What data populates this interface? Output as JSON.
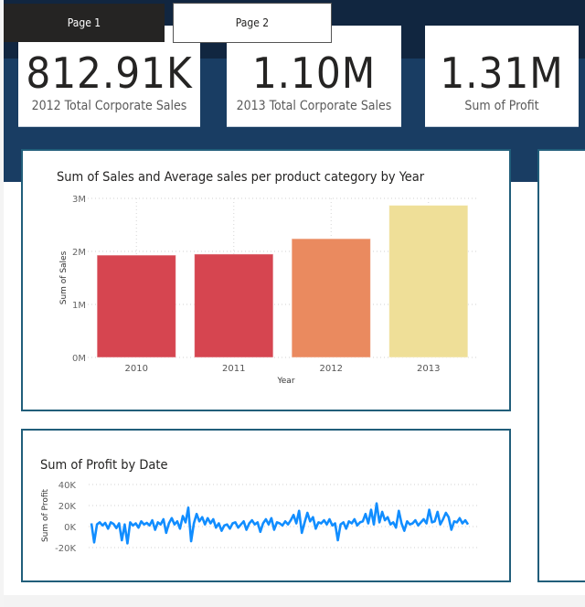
{
  "tabs": [
    {
      "label": "Page 1",
      "active": true
    },
    {
      "label": "Page 2",
      "active": false
    }
  ],
  "kpis": [
    {
      "value": "812.91K",
      "label": "2012 Total Corporate Sales"
    },
    {
      "value": "1.10M",
      "label": "2013 Total Corporate Sales"
    },
    {
      "value": "1.31M",
      "label": "Sum of Profit"
    }
  ],
  "colors": {
    "nav_dark": "#112640",
    "nav_band": "#193d63",
    "card_border": "#215e7a",
    "line": "#118dff"
  },
  "chart_data": [
    {
      "type": "bar",
      "title": "Sum of Sales and Average sales per product category by Year",
      "xlabel": "Year",
      "ylabel": "Sum of Sales",
      "categories": [
        "2010",
        "2011",
        "2012",
        "2013"
      ],
      "values": [
        1930000,
        1950000,
        2240000,
        2870000
      ],
      "colors": [
        "#d64550",
        "#d64550",
        "#ea8a5f",
        "#efdf98"
      ],
      "ylim": [
        0,
        3000000
      ],
      "yticks": [
        {
          "v": 0,
          "label": "0M"
        },
        {
          "v": 1000000,
          "label": "1M"
        },
        {
          "v": 2000000,
          "label": "2M"
        },
        {
          "v": 3000000,
          "label": "3M"
        }
      ],
      "grid": true
    },
    {
      "type": "line",
      "title": "Sum of Profit by Date",
      "xlabel": "",
      "ylabel": "Sum of Profit",
      "ylim": [
        -20000,
        40000
      ],
      "yticks": [
        {
          "v": 40000,
          "label": "40K"
        },
        {
          "v": 20000,
          "label": "20K"
        },
        {
          "v": 0,
          "label": "0K"
        },
        {
          "v": -20000,
          "label": "-20K"
        }
      ],
      "grid": true,
      "values": [
        3000,
        -15000,
        2000,
        4000,
        1000,
        3500,
        -2000,
        4000,
        2500,
        -1500,
        3000,
        -13000,
        2000,
        -16000,
        4000,
        1000,
        3000,
        -1000,
        5000,
        2000,
        3500,
        1000,
        6000,
        -3000,
        4000,
        2000,
        7000,
        -6000,
        3000,
        8000,
        2000,
        5000,
        -2000,
        10000,
        4000,
        18000,
        -14000,
        3000,
        12000,
        5000,
        9000,
        2000,
        8000,
        3000,
        7000,
        -1000,
        3000,
        -4000,
        1000,
        2000,
        -2000,
        3000,
        4000,
        -1000,
        2000,
        5000,
        -3000,
        3000,
        6000,
        2000,
        4000,
        -5000,
        3000,
        7000,
        2000,
        8000,
        -3000,
        4000,
        3000,
        1000,
        5000,
        2000,
        6000,
        11000,
        3000,
        15000,
        -6000,
        4000,
        13000,
        5000,
        9000,
        -2000,
        4000,
        3000,
        6000,
        2000,
        7000,
        1000,
        3000,
        -13000,
        2000,
        4000,
        -2000,
        5000,
        3000,
        7000,
        1000,
        4000,
        5000,
        12000,
        3000,
        16000,
        2000,
        22000,
        4000,
        14000,
        6000,
        9000,
        2000,
        4000,
        -1000,
        15000,
        3000,
        -4000,
        5000,
        2000,
        3000,
        6000,
        1000,
        4000,
        7000,
        3000,
        16000,
        4000,
        5000,
        14000,
        2000,
        7000,
        13000,
        9000,
        -3000,
        5000,
        4000,
        8000,
        3000,
        6000,
        2000
      ]
    }
  ]
}
